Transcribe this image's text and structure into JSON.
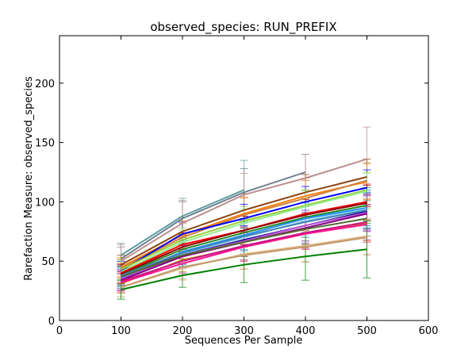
{
  "chart_data": {
    "type": "line",
    "title": "observed_species: RUN_PREFIX",
    "xlabel": "Sequences Per Sample",
    "ylabel": "Rarefaction Measure: observed_species",
    "xlim": [
      0,
      600
    ],
    "ylim": [
      0,
      240
    ],
    "xticks": [
      0,
      100,
      200,
      300,
      400,
      500,
      600
    ],
    "yticks": [
      0,
      50,
      100,
      150,
      200
    ],
    "grid": false,
    "legend": "none",
    "x": [
      100,
      200,
      300,
      400,
      500
    ],
    "series": [
      {
        "color": "#5f9ea0",
        "values": [
          55,
          88,
          110,
          null,
          null
        ],
        "err": [
          10,
          15,
          25,
          null,
          null
        ]
      },
      {
        "color": "#708090",
        "values": [
          52,
          86,
          108,
          125,
          null
        ],
        "err": [
          10,
          15,
          20,
          15,
          null
        ]
      },
      {
        "color": "#bc8f8f",
        "values": [
          50,
          82,
          106,
          120,
          136
        ],
        "err": [
          14,
          18,
          18,
          20,
          27
        ]
      },
      {
        "color": "#8b4513",
        "values": [
          47,
          75,
          93,
          108,
          121
        ],
        "err": [
          8,
          12,
          14,
          15,
          15
        ]
      },
      {
        "color": "#ff7f0e",
        "values": [
          45,
          72,
          90,
          105,
          117
        ],
        "err": [
          8,
          12,
          14,
          15,
          15
        ]
      },
      {
        "color": "#cd853f",
        "values": [
          44,
          70,
          89,
          103,
          118
        ],
        "err": [
          8,
          12,
          14,
          15,
          15
        ]
      },
      {
        "color": "#0000ff",
        "values": [
          42,
          73,
          86,
          100,
          112
        ],
        "err": [
          8,
          10,
          12,
          13,
          15
        ]
      },
      {
        "color": "#9acd32",
        "values": [
          43,
          68,
          84,
          97,
          110
        ],
        "err": [
          8,
          10,
          12,
          13,
          15
        ]
      },
      {
        "color": "#90ee90",
        "values": [
          41,
          66,
          82,
          96,
          109
        ],
        "err": [
          8,
          10,
          12,
          13,
          15
        ]
      },
      {
        "color": "#ff0000",
        "values": [
          40,
          64,
          76,
          90,
          100
        ],
        "err": [
          8,
          10,
          12,
          13,
          15
        ]
      },
      {
        "color": "#8b0000",
        "values": [
          39,
          62,
          76,
          89,
          99
        ],
        "err": [
          8,
          10,
          12,
          13,
          15
        ]
      },
      {
        "color": "#228b22",
        "values": [
          38,
          60,
          74,
          87,
          97
        ],
        "err": [
          8,
          10,
          12,
          13,
          15
        ]
      },
      {
        "color": "#1e90ff",
        "values": [
          36,
          58,
          72,
          86,
          95
        ],
        "err": [
          8,
          10,
          12,
          13,
          15
        ]
      },
      {
        "color": "#87ceeb",
        "values": [
          37,
          56,
          70,
          84,
          94
        ],
        "err": [
          8,
          10,
          12,
          13,
          15
        ]
      },
      {
        "color": "#00008b",
        "values": [
          38,
          55,
          68,
          80,
          92
        ],
        "err": [
          8,
          10,
          12,
          13,
          15
        ]
      },
      {
        "color": "#ba55d3",
        "values": [
          35,
          55,
          67,
          80,
          91
        ],
        "err": [
          8,
          10,
          12,
          13,
          15
        ]
      },
      {
        "color": "#800080",
        "values": [
          34,
          54,
          66,
          78,
          90
        ],
        "err": [
          8,
          10,
          12,
          13,
          15
        ]
      },
      {
        "color": "#4682b4",
        "values": [
          38,
          57,
          71,
          83,
          93
        ],
        "err": [
          8,
          10,
          12,
          13,
          15
        ]
      },
      {
        "color": "#556b2f",
        "values": [
          37,
          55,
          66,
          77,
          86
        ],
        "err": [
          8,
          10,
          12,
          13,
          15
        ]
      },
      {
        "color": "#b8860b",
        "values": [
          31,
          51,
          62,
          73,
          82
        ],
        "err": [
          8,
          10,
          12,
          13,
          15
        ]
      },
      {
        "color": "#ff1493",
        "values": [
          32,
          48,
          62,
          73,
          81
        ],
        "err": [
          8,
          10,
          12,
          13,
          15
        ]
      },
      {
        "color": "#c71585",
        "values": [
          33,
          50,
          63,
          74,
          83
        ],
        "err": [
          8,
          10,
          12,
          13,
          15
        ]
      },
      {
        "color": "#deb887",
        "values": [
          28,
          44,
          56,
          63,
          71
        ],
        "err": [
          8,
          10,
          12,
          13,
          15
        ]
      },
      {
        "color": "#c19a6b",
        "values": [
          28,
          45,
          55,
          62,
          70
        ],
        "err": [
          8,
          10,
          12,
          13,
          15
        ]
      },
      {
        "color": "#008000",
        "values": [
          26,
          38,
          47,
          54,
          60
        ],
        "err": [
          8,
          10,
          15,
          20,
          24
        ]
      }
    ]
  }
}
